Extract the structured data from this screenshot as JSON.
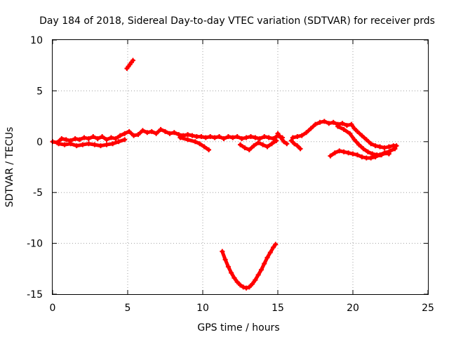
{
  "chart_data": {
    "type": "scatter",
    "title": "Day 184 of 2018, Sidereal Day-to-day VTEC variation (SDTVAR) for receiver prds",
    "xlabel": "GPS time / hours",
    "ylabel": "SDTVAR / TECUs",
    "xlim": [
      0,
      25
    ],
    "ylim": [
      -15,
      10
    ],
    "xticks": [
      0,
      5,
      10,
      15,
      20,
      25
    ],
    "yticks": [
      -15,
      -10,
      -5,
      0,
      5,
      10
    ],
    "xtick_labels": [
      "0",
      "5",
      "10",
      "15",
      "20",
      "25"
    ],
    "ytick_labels": [
      "-15",
      "-10",
      "-5",
      "0",
      "5",
      "10"
    ],
    "grid": true,
    "series_color": "#ff0000",
    "series": [
      {
        "name": "main-band",
        "points": [
          [
            0.0,
            0.0
          ],
          [
            0.3,
            -0.1
          ],
          [
            0.6,
            0.3
          ],
          [
            0.9,
            0.2
          ],
          [
            1.2,
            0.1
          ],
          [
            1.5,
            0.3
          ],
          [
            1.8,
            0.2
          ],
          [
            2.1,
            0.4
          ],
          [
            2.4,
            0.3
          ],
          [
            2.7,
            0.5
          ],
          [
            3.0,
            0.3
          ],
          [
            3.3,
            0.5
          ],
          [
            3.6,
            0.2
          ],
          [
            3.9,
            0.4
          ],
          [
            4.2,
            0.3
          ],
          [
            4.5,
            0.6
          ],
          [
            4.8,
            0.8
          ],
          [
            5.1,
            1.0
          ],
          [
            5.4,
            0.6
          ],
          [
            5.7,
            0.7
          ],
          [
            6.0,
            1.1
          ],
          [
            6.3,
            0.9
          ],
          [
            6.6,
            1.0
          ],
          [
            6.9,
            0.8
          ],
          [
            7.2,
            1.2
          ],
          [
            7.5,
            1.0
          ],
          [
            7.8,
            0.8
          ],
          [
            8.1,
            0.9
          ],
          [
            8.4,
            0.7
          ],
          [
            8.7,
            0.6
          ],
          [
            9.0,
            0.7
          ],
          [
            9.3,
            0.6
          ],
          [
            9.6,
            0.5
          ],
          [
            9.9,
            0.5
          ],
          [
            10.2,
            0.4
          ],
          [
            10.5,
            0.5
          ],
          [
            10.8,
            0.4
          ],
          [
            11.1,
            0.5
          ],
          [
            11.4,
            0.3
          ],
          [
            11.7,
            0.5
          ],
          [
            12.0,
            0.4
          ],
          [
            12.3,
            0.5
          ],
          [
            12.6,
            0.3
          ],
          [
            12.9,
            0.4
          ],
          [
            13.2,
            0.5
          ],
          [
            13.5,
            0.4
          ],
          [
            13.8,
            0.3
          ],
          [
            14.1,
            0.5
          ],
          [
            14.4,
            0.4
          ],
          [
            14.7,
            0.3
          ],
          [
            15.0,
            0.6
          ],
          [
            15.3,
            0.4
          ]
        ]
      },
      {
        "name": "lower-strand-a",
        "points": [
          [
            0.4,
            -0.2
          ],
          [
            0.8,
            -0.3
          ],
          [
            1.2,
            -0.2
          ],
          [
            1.6,
            -0.4
          ],
          [
            2.0,
            -0.3
          ],
          [
            2.4,
            -0.2
          ],
          [
            2.8,
            -0.3
          ],
          [
            3.2,
            -0.4
          ],
          [
            3.6,
            -0.3
          ],
          [
            4.0,
            -0.2
          ],
          [
            4.4,
            0.0
          ],
          [
            4.8,
            0.2
          ]
        ]
      },
      {
        "name": "lower-strand-b",
        "points": [
          [
            8.5,
            0.4
          ],
          [
            9.0,
            0.2
          ],
          [
            9.5,
            0.0
          ],
          [
            9.8,
            -0.2
          ],
          [
            10.1,
            -0.5
          ],
          [
            10.4,
            -0.8
          ]
        ]
      },
      {
        "name": "lower-strand-c",
        "points": [
          [
            12.5,
            -0.3
          ],
          [
            12.8,
            -0.6
          ],
          [
            13.1,
            -0.8
          ],
          [
            13.4,
            -0.4
          ],
          [
            13.7,
            -0.1
          ],
          [
            14.0,
            -0.3
          ],
          [
            14.3,
            -0.5
          ],
          [
            14.6,
            -0.2
          ],
          [
            14.9,
            0.1
          ]
        ]
      },
      {
        "name": "segment-15-16",
        "points": [
          [
            15.0,
            0.8
          ],
          [
            15.2,
            0.4
          ],
          [
            15.4,
            0.0
          ],
          [
            15.6,
            -0.2
          ]
        ]
      },
      {
        "name": "segment-16",
        "points": [
          [
            15.9,
            0.1
          ],
          [
            16.1,
            -0.2
          ],
          [
            16.3,
            -0.4
          ],
          [
            16.5,
            -0.7
          ]
        ]
      },
      {
        "name": "hump",
        "points": [
          [
            16.0,
            0.4
          ],
          [
            16.3,
            0.5
          ],
          [
            16.6,
            0.6
          ],
          [
            16.9,
            0.9
          ],
          [
            17.2,
            1.3
          ],
          [
            17.5,
            1.7
          ],
          [
            17.8,
            1.9
          ],
          [
            18.1,
            2.0
          ],
          [
            18.4,
            1.8
          ],
          [
            18.7,
            1.9
          ],
          [
            19.0,
            1.7
          ],
          [
            19.3,
            1.8
          ],
          [
            19.6,
            1.6
          ],
          [
            19.9,
            1.7
          ],
          [
            20.1,
            1.3
          ],
          [
            20.3,
            1.0
          ],
          [
            20.6,
            0.6
          ],
          [
            20.9,
            0.2
          ],
          [
            21.2,
            -0.2
          ],
          [
            21.5,
            -0.4
          ],
          [
            21.8,
            -0.5
          ],
          [
            22.1,
            -0.6
          ],
          [
            22.4,
            -0.5
          ],
          [
            22.7,
            -0.4
          ],
          [
            22.9,
            -0.4
          ]
        ]
      },
      {
        "name": "hump-lower",
        "points": [
          [
            19.0,
            1.5
          ],
          [
            19.4,
            1.2
          ],
          [
            19.8,
            0.8
          ],
          [
            20.1,
            0.2
          ],
          [
            20.4,
            -0.3
          ],
          [
            20.7,
            -0.7
          ],
          [
            21.0,
            -1.0
          ],
          [
            21.3,
            -1.2
          ],
          [
            21.6,
            -1.3
          ],
          [
            21.9,
            -1.3
          ],
          [
            22.2,
            -1.1
          ],
          [
            22.5,
            -0.9
          ],
          [
            22.8,
            -0.7
          ]
        ]
      },
      {
        "name": "valley-lower",
        "points": [
          [
            18.5,
            -1.4
          ],
          [
            18.8,
            -1.1
          ],
          [
            19.1,
            -0.9
          ],
          [
            19.4,
            -1.0
          ],
          [
            19.7,
            -1.1
          ],
          [
            20.0,
            -1.2
          ],
          [
            20.3,
            -1.3
          ],
          [
            20.6,
            -1.5
          ],
          [
            20.9,
            -1.6
          ],
          [
            21.2,
            -1.6
          ],
          [
            21.5,
            -1.5
          ],
          [
            21.8,
            -1.3
          ],
          [
            22.1,
            -1.1
          ],
          [
            22.4,
            -1.2
          ]
        ]
      },
      {
        "name": "spike-5h",
        "points": [
          [
            4.95,
            7.2
          ],
          [
            5.05,
            7.4
          ],
          [
            5.15,
            7.6
          ],
          [
            5.25,
            7.8
          ],
          [
            5.35,
            8.0
          ]
        ]
      },
      {
        "name": "dip-arc",
        "points": [
          [
            11.3,
            -10.8
          ],
          [
            11.5,
            -11.6
          ],
          [
            11.7,
            -12.3
          ],
          [
            11.9,
            -12.9
          ],
          [
            12.1,
            -13.4
          ],
          [
            12.3,
            -13.8
          ],
          [
            12.5,
            -14.1
          ],
          [
            12.7,
            -14.3
          ],
          [
            12.9,
            -14.4
          ],
          [
            13.1,
            -14.3
          ],
          [
            13.3,
            -14.0
          ],
          [
            13.5,
            -13.6
          ],
          [
            13.7,
            -13.1
          ],
          [
            13.9,
            -12.6
          ],
          [
            14.1,
            -12.0
          ],
          [
            14.3,
            -11.4
          ],
          [
            14.5,
            -10.9
          ],
          [
            14.7,
            -10.4
          ],
          [
            14.85,
            -10.1
          ]
        ]
      }
    ]
  }
}
